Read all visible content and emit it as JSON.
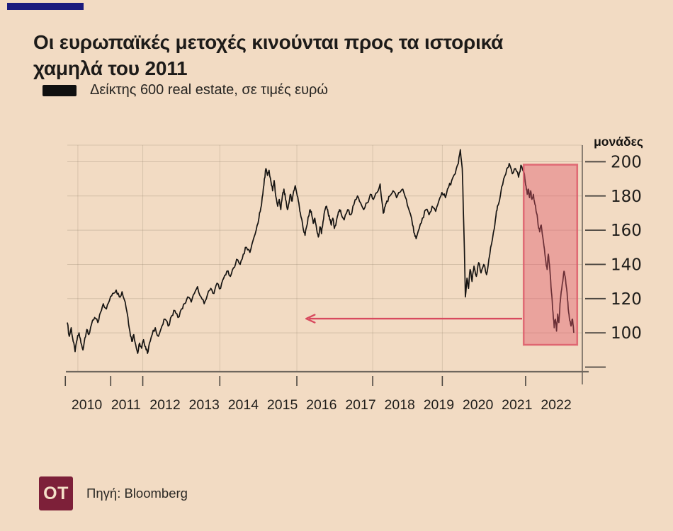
{
  "page": {
    "background": "#f2dbc3",
    "accent_bar_color": "#1b1b7e"
  },
  "header": {
    "title_line1": "Οι ευρωπαϊκές μετοχές κινούνται προς τα ιστορικά",
    "title_line2": "χαμηλά του 2011"
  },
  "legend": {
    "swatch_color": "#101010",
    "label": "Δείκτης 600 real estate, σε τιμές ευρώ"
  },
  "footer": {
    "logo_text": "OT",
    "logo_color": "#7d2039",
    "source_label": "Πηγή: Bloomberg"
  },
  "chart_data": {
    "type": "line",
    "title": "Δείκτης 600 real estate, σε τιμές ευρώ",
    "unit_label": "μονάδες",
    "xlim": [
      2010.0,
      2023.17
    ],
    "ylim": [
      77.3,
      209.7
    ],
    "grid": true,
    "legend_position": "top-left",
    "line_color": "#161412",
    "colors": {
      "grid": "#9c8a74",
      "axis": "#6f675e",
      "tick": "#4a453f",
      "arrow": "#d84a5e",
      "highlight_fill": "#e05568",
      "highlight_stroke": "#dd5a6a"
    },
    "y_ticks": [
      {
        "value": 200,
        "label": "200"
      },
      {
        "value": 180,
        "label": "180"
      },
      {
        "value": 160,
        "label": "160"
      },
      {
        "value": 140,
        "label": "140"
      },
      {
        "value": 120,
        "label": "120"
      },
      {
        "value": 100,
        "label": "100"
      },
      {
        "value": 80,
        "label": ""
      }
    ],
    "x_labels": [
      "2010",
      "2011",
      "2012",
      "2013",
      "2014",
      "2015",
      "2016",
      "2017",
      "2018",
      "2019",
      "2020",
      "2021",
      "2022"
    ],
    "x_ticks": [
      2009.95,
      2011.11,
      2011.93,
      2013.9,
      2015.87,
      2017.81,
      2019.59,
      2021.72
    ],
    "v_gridlines": [
      2010.27,
      2011.93,
      2013.9,
      2015.87,
      2017.81,
      2019.59
    ],
    "highlight_box": {
      "x0": 2021.67,
      "x1": 2023.04,
      "y0": 93,
      "y1": 198.3
    },
    "arrow": {
      "x0": 2016.11,
      "x1": 2021.63,
      "y": 108.3,
      "direction": "left"
    },
    "series": [
      {
        "name": "Δείκτης 600 real estate, σε τιμές ευρώ",
        "points": [
          [
            2010.0,
            106
          ],
          [
            2010.05,
            98
          ],
          [
            2010.1,
            103
          ],
          [
            2010.15,
            95
          ],
          [
            2010.2,
            89
          ],
          [
            2010.25,
            96
          ],
          [
            2010.3,
            100
          ],
          [
            2010.35,
            94
          ],
          [
            2010.4,
            90
          ],
          [
            2010.45,
            97
          ],
          [
            2010.5,
            102
          ],
          [
            2010.55,
            99
          ],
          [
            2010.62,
            105
          ],
          [
            2010.7,
            109
          ],
          [
            2010.78,
            106
          ],
          [
            2010.85,
            112
          ],
          [
            2010.92,
            117
          ],
          [
            2011.0,
            114
          ],
          [
            2011.08,
            119
          ],
          [
            2011.16,
            123
          ],
          [
            2011.25,
            125
          ],
          [
            2011.33,
            121
          ],
          [
            2011.4,
            124
          ],
          [
            2011.48,
            118
          ],
          [
            2011.55,
            109
          ],
          [
            2011.6,
            101
          ],
          [
            2011.65,
            95
          ],
          [
            2011.7,
            99
          ],
          [
            2011.75,
            93
          ],
          [
            2011.8,
            88
          ],
          [
            2011.85,
            94
          ],
          [
            2011.9,
            91
          ],
          [
            2011.95,
            96
          ],
          [
            2012.0,
            92
          ],
          [
            2012.05,
            88
          ],
          [
            2012.1,
            94
          ],
          [
            2012.17,
            99
          ],
          [
            2012.25,
            103
          ],
          [
            2012.33,
            98
          ],
          [
            2012.42,
            104
          ],
          [
            2012.5,
            108
          ],
          [
            2012.58,
            104
          ],
          [
            2012.67,
            110
          ],
          [
            2012.75,
            113
          ],
          [
            2012.83,
            109
          ],
          [
            2012.92,
            114
          ],
          [
            2013.0,
            117
          ],
          [
            2013.08,
            121
          ],
          [
            2013.17,
            118
          ],
          [
            2013.25,
            123
          ],
          [
            2013.33,
            127
          ],
          [
            2013.42,
            121
          ],
          [
            2013.5,
            117
          ],
          [
            2013.58,
            122
          ],
          [
            2013.67,
            126
          ],
          [
            2013.75,
            123
          ],
          [
            2013.83,
            129
          ],
          [
            2013.92,
            126
          ],
          [
            2014.0,
            132
          ],
          [
            2014.08,
            136
          ],
          [
            2014.17,
            133
          ],
          [
            2014.25,
            138
          ],
          [
            2014.33,
            143
          ],
          [
            2014.42,
            140
          ],
          [
            2014.5,
            146
          ],
          [
            2014.58,
            150
          ],
          [
            2014.67,
            147
          ],
          [
            2014.75,
            154
          ],
          [
            2014.83,
            160
          ],
          [
            2014.9,
            167
          ],
          [
            2014.95,
            173
          ],
          [
            2015.0,
            181
          ],
          [
            2015.04,
            190
          ],
          [
            2015.08,
            196
          ],
          [
            2015.12,
            192
          ],
          [
            2015.16,
            195
          ],
          [
            2015.21,
            188
          ],
          [
            2015.25,
            183
          ],
          [
            2015.29,
            189
          ],
          [
            2015.33,
            180
          ],
          [
            2015.38,
            174
          ],
          [
            2015.42,
            178
          ],
          [
            2015.46,
            172
          ],
          [
            2015.5,
            180
          ],
          [
            2015.54,
            184
          ],
          [
            2015.58,
            178
          ],
          [
            2015.63,
            172
          ],
          [
            2015.67,
            176
          ],
          [
            2015.71,
            181
          ],
          [
            2015.75,
            177
          ],
          [
            2015.79,
            183
          ],
          [
            2015.83,
            186
          ],
          [
            2015.88,
            180
          ],
          [
            2015.92,
            176
          ],
          [
            2015.96,
            170
          ],
          [
            2016.0,
            166
          ],
          [
            2016.04,
            160
          ],
          [
            2016.08,
            157
          ],
          [
            2016.13,
            163
          ],
          [
            2016.17,
            168
          ],
          [
            2016.21,
            172
          ],
          [
            2016.25,
            169
          ],
          [
            2016.29,
            164
          ],
          [
            2016.33,
            167
          ],
          [
            2016.38,
            160
          ],
          [
            2016.42,
            156
          ],
          [
            2016.46,
            162
          ],
          [
            2016.5,
            158
          ],
          [
            2016.54,
            165
          ],
          [
            2016.58,
            171
          ],
          [
            2016.63,
            174
          ],
          [
            2016.67,
            170
          ],
          [
            2016.71,
            166
          ],
          [
            2016.75,
            163
          ],
          [
            2016.79,
            167
          ],
          [
            2016.83,
            161
          ],
          [
            2016.88,
            165
          ],
          [
            2016.92,
            169
          ],
          [
            2016.96,
            172
          ],
          [
            2017.0,
            170
          ],
          [
            2017.08,
            166
          ],
          [
            2017.17,
            172
          ],
          [
            2017.25,
            169
          ],
          [
            2017.33,
            175
          ],
          [
            2017.42,
            180
          ],
          [
            2017.5,
            176
          ],
          [
            2017.58,
            172
          ],
          [
            2017.67,
            176
          ],
          [
            2017.75,
            181
          ],
          [
            2017.83,
            178
          ],
          [
            2017.92,
            182
          ],
          [
            2018.0,
            187
          ],
          [
            2018.04,
            178
          ],
          [
            2018.08,
            170
          ],
          [
            2018.13,
            174
          ],
          [
            2018.17,
            177
          ],
          [
            2018.25,
            180
          ],
          [
            2018.33,
            183
          ],
          [
            2018.42,
            179
          ],
          [
            2018.5,
            182
          ],
          [
            2018.58,
            184
          ],
          [
            2018.67,
            178
          ],
          [
            2018.75,
            171
          ],
          [
            2018.83,
            163
          ],
          [
            2018.88,
            158
          ],
          [
            2018.92,
            155
          ],
          [
            2019.0,
            161
          ],
          [
            2019.08,
            167
          ],
          [
            2019.17,
            172
          ],
          [
            2019.25,
            169
          ],
          [
            2019.33,
            174
          ],
          [
            2019.42,
            171
          ],
          [
            2019.5,
            177
          ],
          [
            2019.58,
            182
          ],
          [
            2019.67,
            179
          ],
          [
            2019.75,
            185
          ],
          [
            2019.83,
            189
          ],
          [
            2019.92,
            193
          ],
          [
            2020.0,
            199
          ],
          [
            2020.05,
            207
          ],
          [
            2020.1,
            196
          ],
          [
            2020.14,
            162
          ],
          [
            2020.18,
            121
          ],
          [
            2020.22,
            132
          ],
          [
            2020.26,
            126
          ],
          [
            2020.3,
            137
          ],
          [
            2020.35,
            130
          ],
          [
            2020.4,
            139
          ],
          [
            2020.46,
            133
          ],
          [
            2020.52,
            141
          ],
          [
            2020.58,
            135
          ],
          [
            2020.65,
            140
          ],
          [
            2020.72,
            134
          ],
          [
            2020.78,
            143
          ],
          [
            2020.85,
            152
          ],
          [
            2020.92,
            161
          ],
          [
            2020.96,
            168
          ],
          [
            2021.0,
            174
          ],
          [
            2021.08,
            181
          ],
          [
            2021.16,
            190
          ],
          [
            2021.24,
            196
          ],
          [
            2021.3,
            199
          ],
          [
            2021.38,
            193
          ],
          [
            2021.46,
            196
          ],
          [
            2021.54,
            191
          ],
          [
            2021.6,
            198
          ],
          [
            2021.67,
            194
          ],
          [
            2021.7,
            190
          ],
          [
            2021.73,
            186
          ],
          [
            2021.76,
            181
          ],
          [
            2021.79,
            184
          ],
          [
            2021.82,
            179
          ],
          [
            2021.85,
            183
          ],
          [
            2021.88,
            178
          ],
          [
            2021.92,
            181
          ],
          [
            2021.96,
            175
          ],
          [
            2022.0,
            170
          ],
          [
            2022.04,
            163
          ],
          [
            2022.08,
            159
          ],
          [
            2022.12,
            163
          ],
          [
            2022.16,
            156
          ],
          [
            2022.2,
            149
          ],
          [
            2022.24,
            141
          ],
          [
            2022.27,
            137
          ],
          [
            2022.3,
            146
          ],
          [
            2022.33,
            140
          ],
          [
            2022.36,
            131
          ],
          [
            2022.39,
            122
          ],
          [
            2022.42,
            112
          ],
          [
            2022.45,
            103
          ],
          [
            2022.48,
            108
          ],
          [
            2022.51,
            101
          ],
          [
            2022.54,
            111
          ],
          [
            2022.57,
            106
          ],
          [
            2022.6,
            117
          ],
          [
            2022.63,
            124
          ],
          [
            2022.67,
            130
          ],
          [
            2022.7,
            136
          ],
          [
            2022.73,
            133
          ],
          [
            2022.76,
            127
          ],
          [
            2022.79,
            120
          ],
          [
            2022.82,
            112
          ],
          [
            2022.85,
            107
          ],
          [
            2022.88,
            104
          ],
          [
            2022.92,
            108
          ],
          [
            2022.95,
            100
          ]
        ]
      }
    ]
  }
}
